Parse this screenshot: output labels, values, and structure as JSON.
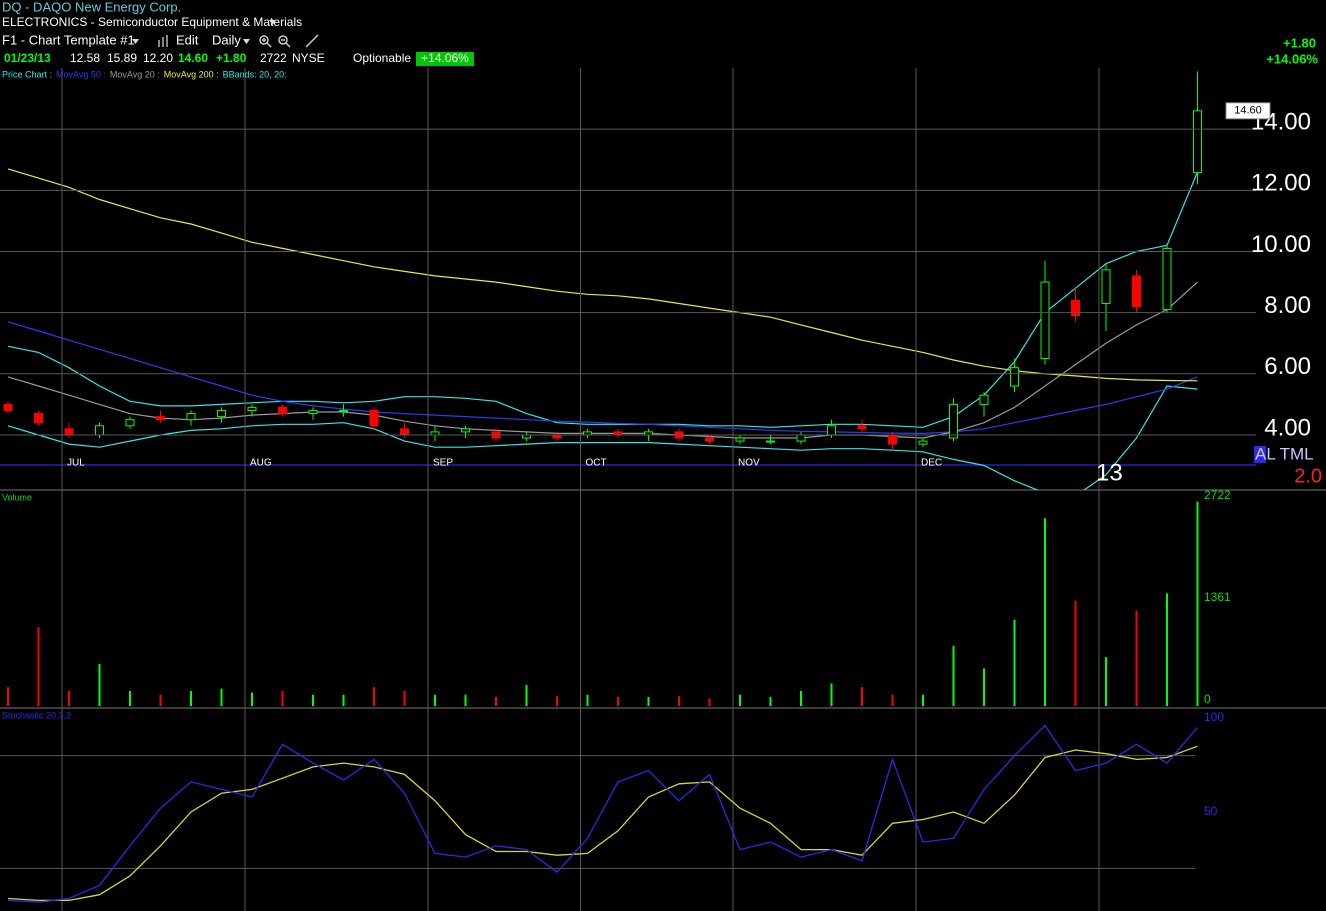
{
  "header": {
    "symbol_title": "DQ - DAQO New Energy Corp.",
    "industry": "ELECTRONICS - Semiconductor Equipment & Materials",
    "template": "F1 - Chart Template #1",
    "edit": "Edit",
    "period": "Daily",
    "date": "01/23/13",
    "open": "12.58",
    "high": "15.89",
    "low": "12.20",
    "last": "14.60",
    "change": "+1.80",
    "volume": "2722",
    "exchange": "NYSE",
    "optionable": "Optionable",
    "change_pct": "+14.06%",
    "price_box": "14.60",
    "side_label": "AL TML",
    "side_value": "2.0"
  },
  "chart_data": [
    {
      "type": "candlestick",
      "legend_prefix": "Price Chart :",
      "categories": [
        null,
        null,
        "JUL",
        null,
        null,
        null,
        null,
        null,
        "AUG",
        null,
        null,
        null,
        null,
        null,
        "SEP",
        null,
        null,
        null,
        null,
        "OCT",
        null,
        null,
        null,
        null,
        "NOV",
        null,
        null,
        null,
        null,
        null,
        "DEC",
        null,
        null,
        null,
        null,
        null,
        "13",
        null,
        null,
        null
      ],
      "candles": {
        "up_color": "#00ff00",
        "down_color": "#ff0000",
        "open": [
          5.0,
          4.7,
          4.2,
          4.0,
          4.3,
          4.6,
          4.5,
          4.6,
          4.8,
          4.9,
          4.7,
          4.8,
          4.8,
          4.2,
          4.0,
          4.1,
          4.1,
          3.9,
          4.0,
          4.0,
          4.1,
          4.0,
          4.1,
          3.9,
          3.8,
          3.8,
          3.8,
          4.0,
          4.3,
          4.0,
          3.7,
          3.9,
          5.0,
          5.6,
          6.5,
          8.4,
          8.3,
          9.2,
          8.1,
          12.58
        ],
        "high": [
          5.1,
          4.8,
          4.4,
          4.4,
          4.6,
          4.8,
          4.8,
          4.9,
          5.0,
          5.0,
          4.9,
          5.0,
          4.9,
          4.4,
          4.3,
          4.3,
          4.2,
          4.1,
          4.1,
          4.2,
          4.2,
          4.2,
          4.2,
          4.0,
          4.0,
          4.0,
          4.1,
          4.5,
          4.5,
          4.1,
          3.9,
          5.2,
          5.4,
          6.5,
          9.7,
          8.8,
          9.6,
          9.4,
          10.2,
          15.89
        ],
        "low": [
          4.7,
          4.3,
          3.9,
          3.9,
          4.2,
          4.4,
          4.3,
          4.4,
          4.6,
          4.6,
          4.5,
          4.6,
          4.2,
          3.9,
          3.8,
          3.9,
          3.8,
          3.8,
          3.8,
          3.9,
          3.9,
          3.8,
          3.8,
          3.7,
          3.7,
          3.7,
          3.7,
          3.9,
          4.1,
          3.5,
          3.6,
          3.8,
          4.6,
          5.4,
          6.3,
          7.7,
          7.4,
          8.0,
          8.0,
          12.2
        ],
        "close": [
          4.8,
          4.4,
          4.0,
          4.3,
          4.5,
          4.5,
          4.7,
          4.8,
          4.9,
          4.7,
          4.8,
          4.8,
          4.3,
          4.0,
          4.1,
          4.2,
          3.9,
          4.0,
          3.9,
          4.1,
          4.0,
          4.1,
          3.9,
          3.8,
          3.9,
          3.8,
          4.0,
          4.3,
          4.2,
          3.7,
          3.8,
          5.0,
          5.3,
          6.2,
          9.0,
          7.9,
          9.4,
          8.2,
          10.1,
          14.6
        ]
      },
      "series": [
        {
          "name": "MovAvg 50 :",
          "color": "#2a3cf0",
          "values": [
            7.7,
            7.4,
            7.1,
            6.8,
            6.5,
            6.2,
            5.9,
            5.6,
            5.3,
            5.1,
            4.95,
            4.85,
            4.75,
            4.7,
            4.65,
            4.6,
            4.55,
            4.5,
            4.45,
            4.42,
            4.38,
            4.35,
            4.3,
            4.25,
            4.2,
            4.15,
            4.12,
            4.1,
            4.08,
            4.06,
            4.05,
            4.1,
            4.2,
            4.4,
            4.6,
            4.8,
            5.0,
            5.25,
            5.5,
            5.9
          ]
        },
        {
          "name": "MovAvg 20 :",
          "color": "#9a9a9a",
          "values": [
            5.9,
            5.6,
            5.3,
            5.0,
            4.7,
            4.55,
            4.5,
            4.55,
            4.65,
            4.7,
            4.75,
            4.75,
            4.65,
            4.45,
            4.3,
            4.2,
            4.15,
            4.1,
            4.05,
            4.05,
            4.05,
            4.05,
            4.0,
            3.95,
            3.9,
            3.9,
            3.9,
            4.0,
            4.0,
            3.95,
            3.9,
            4.1,
            4.4,
            4.9,
            5.6,
            6.3,
            7.0,
            7.6,
            8.1,
            9.0
          ]
        },
        {
          "name": "MovAvg 200 :",
          "color": "#e8e84a",
          "values": [
            12.7,
            12.4,
            12.1,
            11.7,
            11.4,
            11.1,
            10.9,
            10.6,
            10.3,
            10.1,
            9.9,
            9.7,
            9.5,
            9.35,
            9.2,
            9.1,
            9.0,
            8.85,
            8.7,
            8.6,
            8.55,
            8.45,
            8.3,
            8.15,
            8.0,
            7.85,
            7.6,
            7.35,
            7.1,
            6.9,
            6.7,
            6.45,
            6.25,
            6.1,
            6.0,
            5.93,
            5.85,
            5.8,
            5.78,
            5.77
          ]
        }
      ],
      "bands": {
        "name": "BBands: 20, 20:",
        "color": "#35e6e6",
        "upper": [
          6.9,
          6.7,
          6.2,
          5.6,
          5.1,
          4.95,
          4.95,
          5.0,
          5.05,
          5.1,
          5.1,
          5.05,
          5.1,
          5.25,
          5.25,
          5.2,
          5.1,
          4.7,
          4.4,
          4.35,
          4.35,
          4.35,
          4.35,
          4.3,
          4.3,
          4.25,
          4.3,
          4.35,
          4.35,
          4.3,
          4.25,
          4.6,
          5.3,
          6.4,
          8.0,
          8.8,
          9.6,
          10.0,
          10.2,
          12.6
        ],
        "lower": [
          4.3,
          4.0,
          3.7,
          3.6,
          3.8,
          4.0,
          4.15,
          4.2,
          4.3,
          4.35,
          4.35,
          4.4,
          4.2,
          3.8,
          3.6,
          3.6,
          3.65,
          3.7,
          3.75,
          3.75,
          3.75,
          3.75,
          3.7,
          3.65,
          3.6,
          3.55,
          3.5,
          3.55,
          3.55,
          3.5,
          3.45,
          3.2,
          3.0,
          2.5,
          2.1,
          2.0,
          2.7,
          3.9,
          5.6,
          5.5
        ]
      },
      "ylim": [
        2.2,
        16
      ],
      "yticks": [
        {
          "value": 4,
          "label": "4.00"
        },
        {
          "value": 6,
          "label": "6.00"
        },
        {
          "value": 8,
          "label": "8.00"
        },
        {
          "value": 10,
          "label": "10.00"
        },
        {
          "value": 12,
          "label": "12.00"
        },
        {
          "value": 14,
          "label": "14.00"
        }
      ],
      "grid": true
    },
    {
      "type": "bar",
      "title": "Volume",
      "values": [
        250,
        1050,
        200,
        560,
        200,
        150,
        200,
        230,
        180,
        200,
        150,
        150,
        250,
        200,
        150,
        150,
        120,
        280,
        130,
        150,
        120,
        120,
        130,
        100,
        150,
        120,
        200,
        300,
        250,
        150,
        150,
        800,
        500,
        1150,
        2500,
        1400,
        650,
        1270,
        1500,
        2722
      ],
      "ylim": [
        0,
        2850
      ],
      "yticks": [
        0,
        1361,
        2722
      ],
      "tick_color": "#00e000",
      "grid": false
    },
    {
      "type": "line",
      "title": "Stochastic 20,3,2",
      "series": [
        {
          "color": "#2a2ae8",
          "values": [
            3,
            2,
            4,
            11,
            32,
            52,
            66,
            62,
            58,
            86,
            76,
            67,
            78,
            60,
            28,
            26,
            32,
            30,
            18,
            36,
            66,
            72,
            56,
            70,
            30,
            34,
            26,
            30,
            24,
            78,
            34,
            36,
            62,
            80,
            96,
            72,
            76,
            86,
            76,
            95
          ]
        },
        {
          "color": "#d8d830",
          "values": [
            4,
            3,
            3,
            6,
            16,
            32,
            50,
            60,
            62,
            68,
            74,
            76,
            74,
            70,
            56,
            38,
            29,
            29,
            27,
            28,
            40,
            58,
            65,
            66,
            52,
            44,
            30,
            30,
            27,
            44,
            46,
            50,
            44,
            59,
            79,
            83,
            81,
            78,
            79,
            85
          ]
        }
      ],
      "ylim": [
        0,
        100
      ],
      "yticks": [
        50,
        100
      ],
      "grid_levels": [
        20,
        80
      ],
      "tick_color": "#2a2ae8"
    }
  ]
}
